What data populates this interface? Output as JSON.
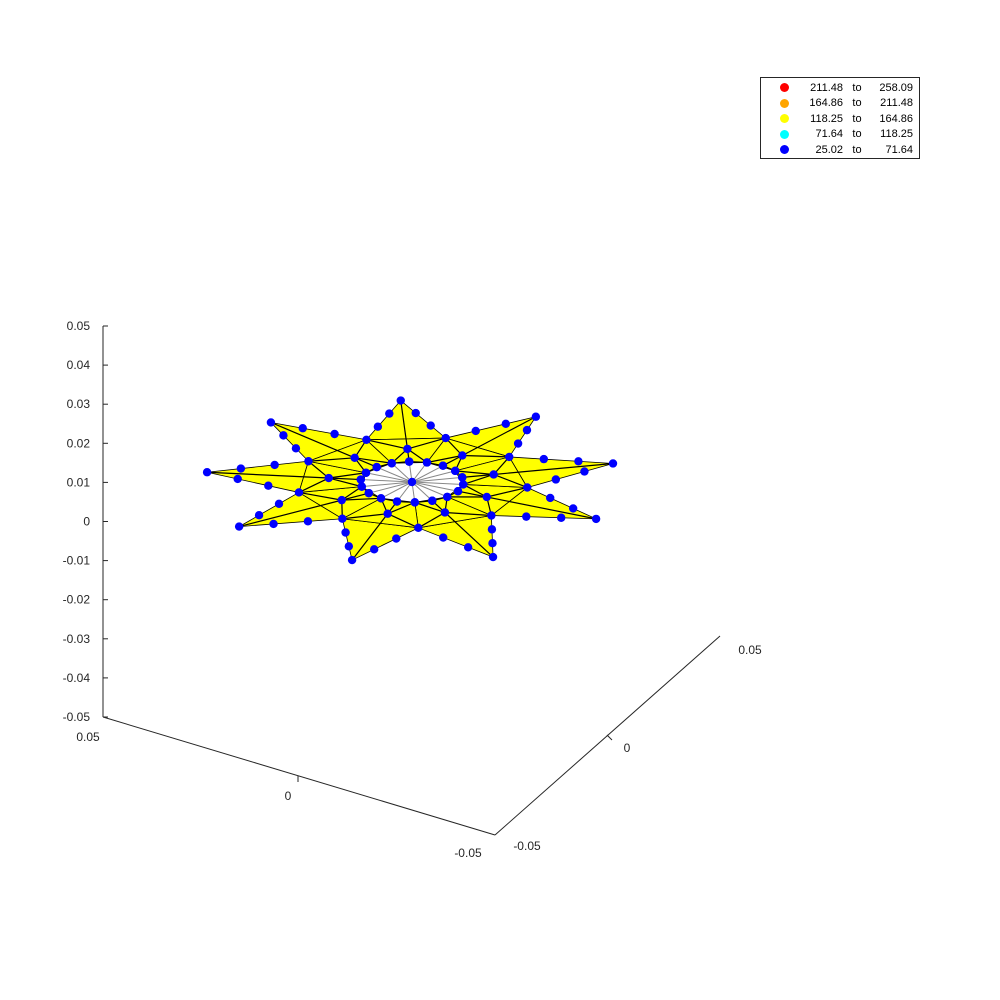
{
  "chart_data": {
    "type": "scatter",
    "projection": "3d",
    "title": "",
    "xlabel": "",
    "ylabel": "",
    "zlabel": "",
    "xlim": [
      -0.05,
      0.05
    ],
    "ylim": [
      -0.05,
      0.05
    ],
    "zlim": [
      -0.05,
      0.05
    ],
    "x_ticks": [
      "0.05",
      "0",
      "-0.05"
    ],
    "y_ticks": [
      "-0.05",
      "0",
      "0.05"
    ],
    "z_ticks": [
      "0.05",
      "0.04",
      "0.03",
      "0.02",
      "0.01",
      "0",
      "-0.01",
      "-0.02",
      "-0.03",
      "-0.04",
      "-0.05"
    ],
    "z_tick_values": [
      0.05,
      0.04,
      0.03,
      0.02,
      0.01,
      0,
      -0.01,
      -0.02,
      -0.03,
      -0.04,
      -0.05
    ],
    "grid": false,
    "legend_position": "top-right",
    "surface_color": "#ffff00",
    "node_color": "#0000ff",
    "star": {
      "arms": 9,
      "outer_radius": 0.048,
      "inner_radius": 0.027,
      "core_radius": 0.012,
      "center_z": 0.0
    },
    "legend": [
      {
        "low": "211.48",
        "to": "to",
        "high": "258.09",
        "color": "#ff0000"
      },
      {
        "low": "164.86",
        "to": "to",
        "high": "211.48",
        "color": "#ffa500"
      },
      {
        "low": "118.25",
        "to": "to",
        "high": "164.86",
        "color": "#ffff00"
      },
      {
        "low": "71.64",
        "to": "to",
        "high": "118.25",
        "color": "#00ffff"
      },
      {
        "low": "25.02",
        "to": "to",
        "high": "71.64",
        "color": "#0000ff"
      }
    ]
  }
}
